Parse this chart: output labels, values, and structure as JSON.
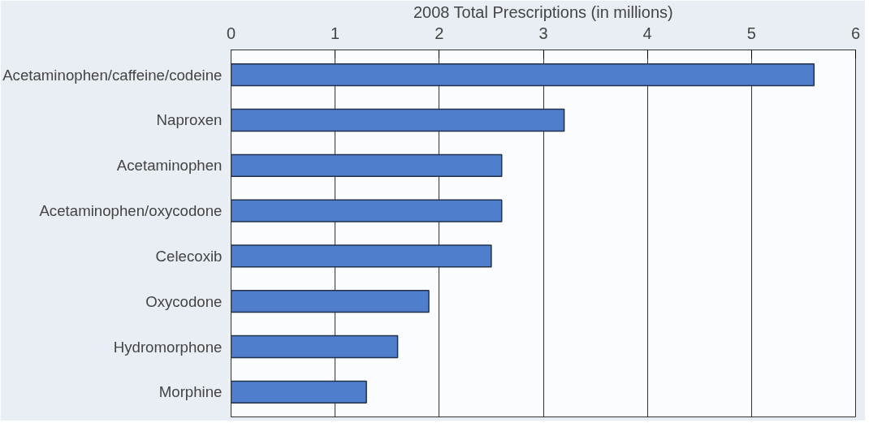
{
  "chart_data": {
    "type": "bar",
    "orientation": "horizontal",
    "xlabel": "2008 Total Prescriptions (in millions)",
    "categories": [
      "Acetaminophen/caffeine/codeine",
      "Naproxen",
      "Acetaminophen",
      "Acetaminophen/oxycodone",
      "Celecoxib",
      "Oxycodone",
      "Hydromorphone",
      "Morphine"
    ],
    "values": [
      5.6,
      3.2,
      2.6,
      2.6,
      2.5,
      1.9,
      1.6,
      1.3
    ],
    "color": "#4f7fcc",
    "xlim": [
      0,
      6
    ],
    "xticks": [
      0,
      1,
      2,
      3,
      4,
      5,
      6
    ],
    "grid": "x"
  }
}
